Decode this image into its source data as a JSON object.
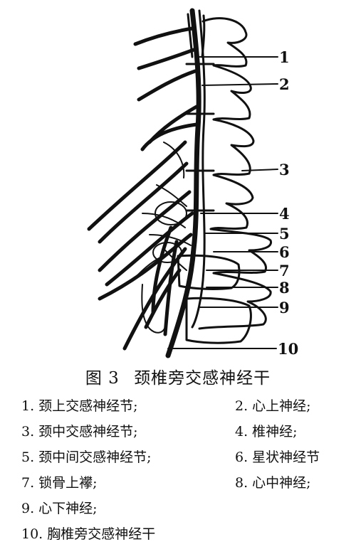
{
  "figure": {
    "callouts": [
      "1",
      "2",
      "3",
      "4",
      "5",
      "6",
      "7",
      "8",
      "9",
      "10"
    ]
  },
  "caption": {
    "fig_label": "图 3",
    "title": "颈椎旁交感神经干"
  },
  "legend": [
    "1. 颈上交感神经节;",
    "2. 心上神经;",
    "3. 颈中交感神经节;",
    "4. 椎神经;",
    "5. 颈中间交感神经节;",
    "6. 星状神经节",
    "7. 锁骨上襻;",
    "8. 心中神经;",
    "9. 心下神经;",
    "10. 胸椎旁交感神经干"
  ]
}
